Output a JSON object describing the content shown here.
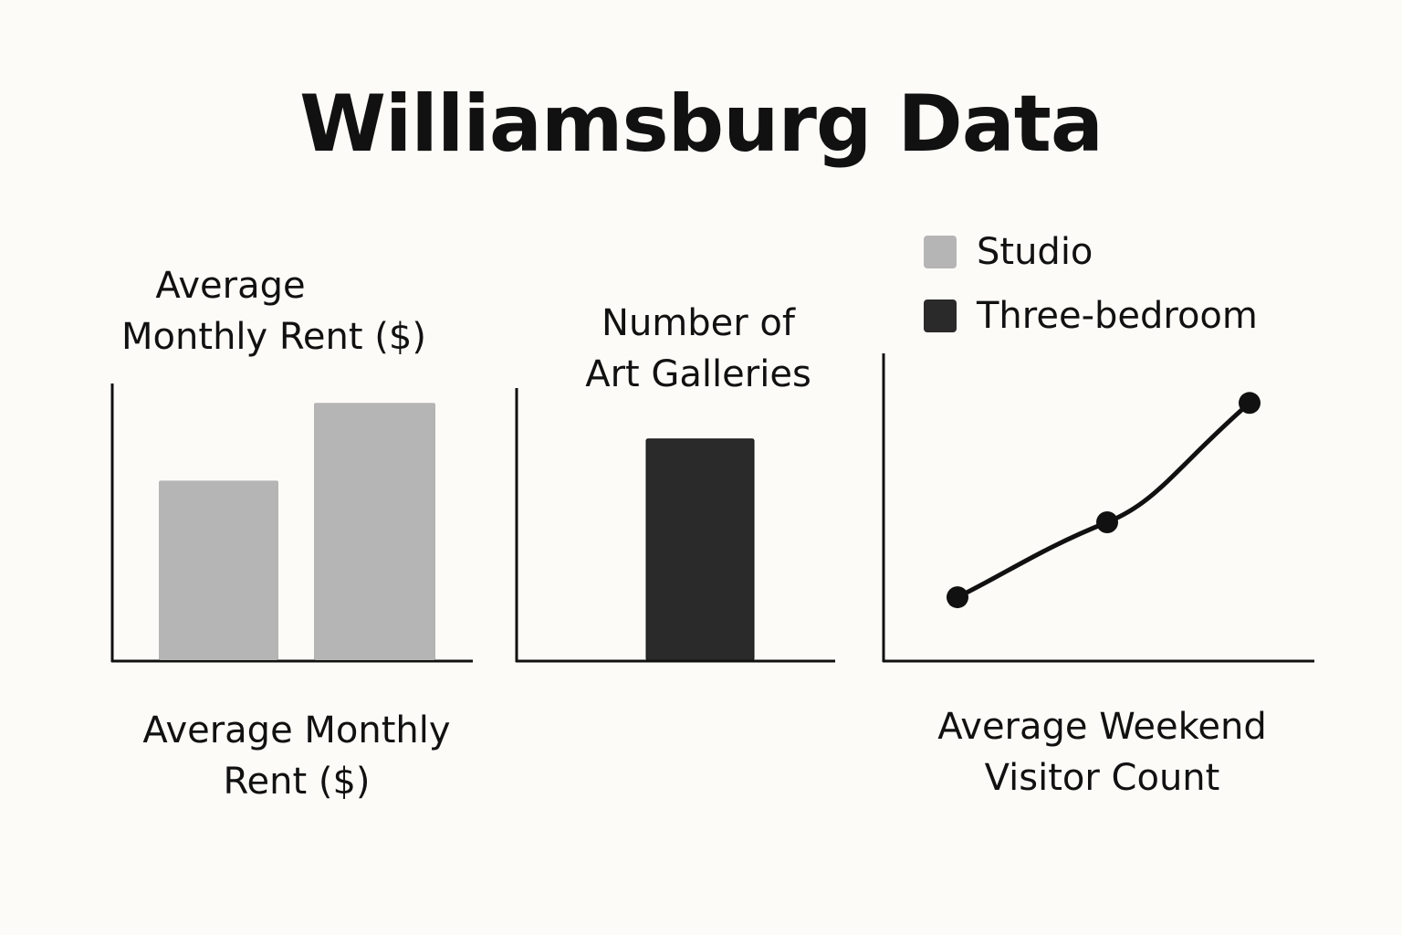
{
  "title": "Williamsburg Data",
  "legend": [
    {
      "label": "Studio",
      "color": "#b5b5b5"
    },
    {
      "label": "Three-bedroom",
      "color": "#2a2a2a"
    }
  ],
  "chart_data": [
    {
      "type": "bar",
      "title": "Average Monthly Rent ($)",
      "xlabel": "Average Monthly Rent ($)",
      "categories": [
        "Studio",
        "Three-bedroom"
      ],
      "values": [
        65,
        93
      ],
      "ylim": [
        0,
        100
      ],
      "colors": [
        "#b5b5b5",
        "#b5b5b5"
      ],
      "grid": false
    },
    {
      "type": "bar",
      "title": "Number of Art Galleries",
      "xlabel": "",
      "categories": [
        "Three-bedroom"
      ],
      "values": [
        80
      ],
      "ylim": [
        0,
        100
      ],
      "colors": [
        "#2a2a2a"
      ],
      "grid": false
    },
    {
      "type": "line",
      "title": "",
      "xlabel": "Average Weekend Visitor Count",
      "x": [
        1,
        2,
        3
      ],
      "values": [
        23,
        50,
        93
      ],
      "ylim": [
        0,
        100
      ],
      "color": "#111111",
      "grid": false
    }
  ]
}
